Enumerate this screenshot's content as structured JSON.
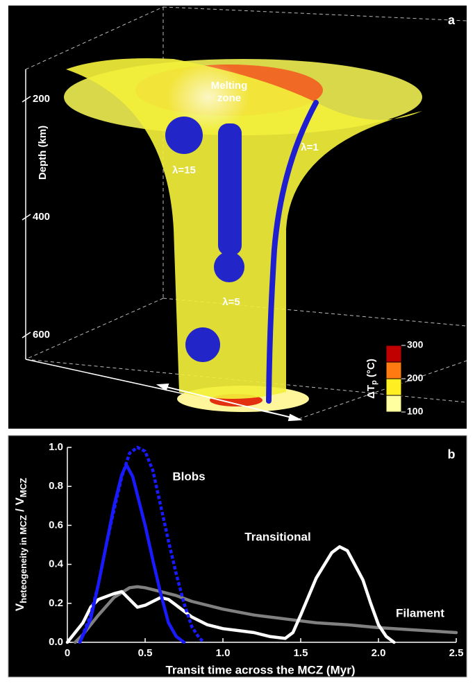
{
  "panel_a": {
    "label": "a",
    "melting_zone": [
      "Melting",
      "zone"
    ],
    "lambda_labels": [
      "λ=1",
      "λ=15",
      "λ=5"
    ],
    "depth_label": "Depth (km)",
    "depth_ticks": [
      200,
      400,
      600
    ],
    "colorbar_title": [
      "ΔT",
      "p",
      " (°C)"
    ],
    "colorbar_ticks": [
      300,
      200,
      100
    ]
  },
  "chart_data": {
    "type": "line",
    "panel_label": "b",
    "xlabel": "Transit time across the MCZ (Myr)",
    "ylabel": [
      "V",
      "heteogeneity in MCZ",
      " / V",
      "MCZ"
    ],
    "annotations": [
      "Blobs",
      "Transitional",
      "Filament"
    ],
    "xlim": [
      0,
      2.5
    ],
    "ylim": [
      0,
      1.0
    ],
    "xticks": [
      0,
      0.5,
      {
        "value": 1,
        "label": "1.0"
      },
      1.5,
      {
        "value": 2,
        "label": "2.0"
      },
      2.5
    ],
    "yticks": [
      {
        "value": 0,
        "label": "0.0"
      },
      0.2,
      0.4,
      0.6,
      0.8,
      {
        "value": 1,
        "label": "1.0"
      }
    ],
    "series": [
      {
        "color": "#808080",
        "style": "solid",
        "x": [
          0.05,
          0.1,
          0.2,
          0.3,
          0.4,
          0.45,
          0.5,
          0.6,
          0.7,
          0.8,
          1.0,
          1.2,
          1.4,
          1.6,
          1.8,
          2.0,
          2.2,
          2.5
        ],
        "values": [
          0,
          0.04,
          0.14,
          0.23,
          0.28,
          0.285,
          0.28,
          0.26,
          0.24,
          0.21,
          0.17,
          0.14,
          0.12,
          0.1,
          0.09,
          0.075,
          0.065,
          0.05
        ]
      },
      {
        "color": "#ffffff",
        "style": "solid",
        "x": [
          0,
          0.1,
          0.15,
          0.2,
          0.3,
          0.35,
          0.4,
          0.45,
          0.5,
          0.6,
          0.65,
          0.7,
          0.8,
          0.9,
          1.0,
          1.1,
          1.2,
          1.3,
          1.4,
          1.45,
          1.5,
          1.6,
          1.7,
          1.75,
          1.8,
          1.9,
          1.95,
          2.0,
          2.05,
          2.1
        ],
        "values": [
          0,
          0.1,
          0.18,
          0.22,
          0.25,
          0.26,
          0.22,
          0.18,
          0.19,
          0.23,
          0.22,
          0.19,
          0.13,
          0.09,
          0.07,
          0.06,
          0.05,
          0.03,
          0.02,
          0.05,
          0.14,
          0.33,
          0.46,
          0.49,
          0.47,
          0.32,
          0.2,
          0.09,
          0.03,
          0
        ]
      },
      {
        "color": "#1a1aff",
        "style": "dotted",
        "x": [
          0.08,
          0.15,
          0.2,
          0.25,
          0.3,
          0.35,
          0.4,
          0.45,
          0.5,
          0.55,
          0.6,
          0.65,
          0.7,
          0.75,
          0.8,
          0.85,
          0.88
        ],
        "values": [
          0,
          0.14,
          0.3,
          0.5,
          0.68,
          0.85,
          0.97,
          1.0,
          0.98,
          0.88,
          0.7,
          0.52,
          0.35,
          0.2,
          0.08,
          0.02,
          0
        ]
      },
      {
        "color": "#1a1aff",
        "style": "solid",
        "x": [
          0.08,
          0.15,
          0.2,
          0.25,
          0.3,
          0.35,
          0.38,
          0.42,
          0.5,
          0.55,
          0.6,
          0.65,
          0.7,
          0.75
        ],
        "values": [
          0,
          0.12,
          0.3,
          0.5,
          0.7,
          0.86,
          0.91,
          0.85,
          0.6,
          0.42,
          0.25,
          0.1,
          0.03,
          0
        ]
      }
    ]
  }
}
